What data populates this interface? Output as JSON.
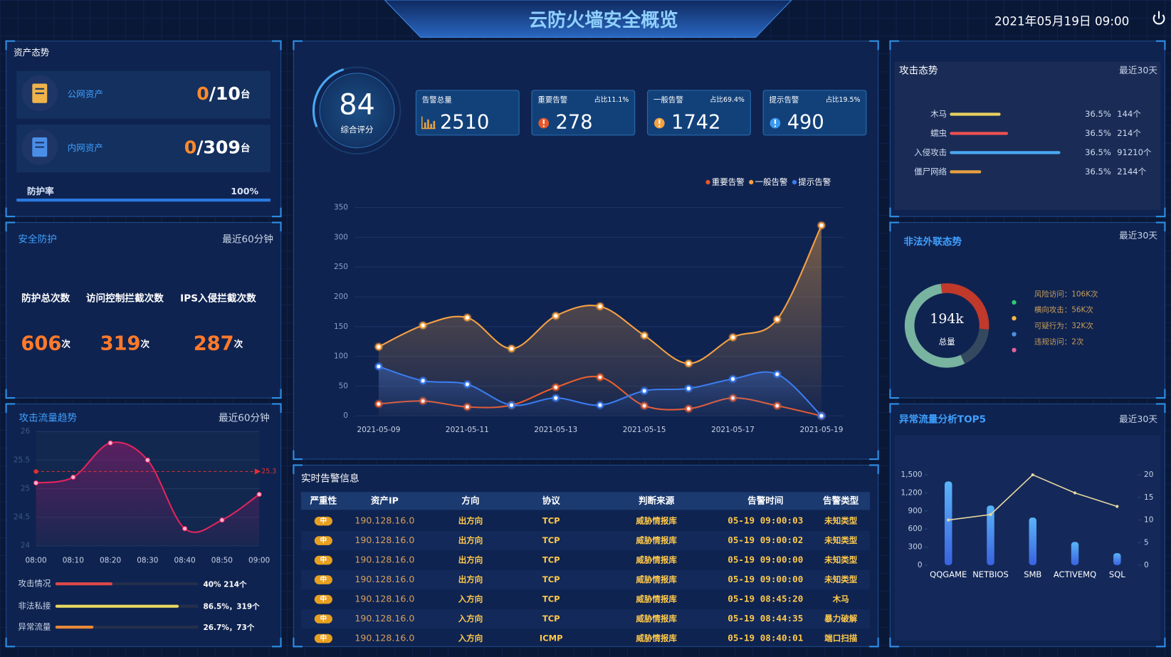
{
  "header": {
    "title": "云防火墙安全概览",
    "datetime": "2021年05月19日 09:00"
  },
  "assets": {
    "title": "资产态势",
    "items": [
      {
        "label": "公网资产",
        "value": "0",
        "total": "/10",
        "unit": "台"
      },
      {
        "label": "内网资产",
        "value": "0",
        "total": "/309",
        "unit": "台"
      }
    ],
    "rate_label": "防护率",
    "rate": 100,
    "rate_text": "100%"
  },
  "protection": {
    "title": "安全防护",
    "period": "最近60分钟",
    "stats": [
      {
        "label": "防护总次数",
        "value": 606,
        "unit": "次"
      },
      {
        "label": "访问控制拦截次数",
        "value": 319,
        "unit": "次"
      },
      {
        "label": "IPS入侵拦截次数",
        "value": 287,
        "unit": "次"
      }
    ]
  },
  "traffic_bars": [
    {
      "label": "攻击情况",
      "value": 40,
      "value_label": "40% 214个",
      "color": "#e04848"
    },
    {
      "label": "非法私接",
      "value": 86.5,
      "value_label": "86.5%，319个",
      "color": "#e8d860"
    },
    {
      "label": "异常流量",
      "value": 26.7,
      "value_label": "26.7%，73个",
      "color": "#e8883a"
    }
  ],
  "score": {
    "value": 84,
    "label": "综合评分"
  },
  "cards": [
    {
      "title": "告警总量",
      "value": 2510,
      "color": "#e8a040"
    },
    {
      "title": "重要告警",
      "ratio": "占比11.1%",
      "value": 278,
      "color": "#e8562a"
    },
    {
      "title": "一般告警",
      "ratio": "占比69.4%",
      "value": 1742,
      "color": "#f5a142"
    },
    {
      "title": "提示告警",
      "ratio": "占比19.5%",
      "value": 490,
      "color": "#3a9af0"
    }
  ],
  "alerts": {
    "title": "实时告警信息",
    "columns": [
      "严重性",
      "资产IP",
      "方向",
      "协议",
      "判断来源",
      "告警时间",
      "告警类型"
    ],
    "rows": [
      [
        "中",
        "190.128.16.0",
        "出方向",
        "TCP",
        "威胁情报库",
        "05-19 09:00:03",
        "未知类型"
      ],
      [
        "中",
        "190.128.16.0",
        "出方向",
        "TCP",
        "威胁情报库",
        "05-19 09:00:02",
        "未知类型"
      ],
      [
        "中",
        "190.128.16.0",
        "出方向",
        "TCP",
        "威胁情报库",
        "05-19 09:00:00",
        "未知类型"
      ],
      [
        "中",
        "190.128.16.0",
        "出方向",
        "TCP",
        "威胁情报库",
        "05-19 09:00:00",
        "未知类型"
      ],
      [
        "中",
        "190.128.16.0",
        "入方向",
        "TCP",
        "威胁情报库",
        "05-19 08:45:20",
        "木马"
      ],
      [
        "中",
        "190.128.16.0",
        "入方向",
        "TCP",
        "威胁情报库",
        "05-19 08:44:35",
        "暴力破解"
      ],
      [
        "中",
        "190.128.16.0",
        "入方向",
        "ICMP",
        "威胁情报库",
        "05-19 08:40:01",
        "端口扫描"
      ]
    ]
  },
  "attack": {
    "title": "攻击态势",
    "period": "最近30天",
    "rows": [
      {
        "label": "木马",
        "pct": "36.5%",
        "count": "144个"
      },
      {
        "label": "蠕虫",
        "pct": "36.5%",
        "count": "214个"
      },
      {
        "label": "入侵攻击",
        "pct": "36.5%",
        "count": "91210个"
      },
      {
        "label": "僵尸网络",
        "pct": "36.5%",
        "count": "2144个"
      }
    ]
  },
  "chart_data": [
    {
      "type": "line",
      "title": "攻击流量趋势",
      "period": "最近60分钟",
      "categories": [
        "08:00",
        "08:10",
        "08:20",
        "08:30",
        "08:40",
        "08:50",
        "09:00"
      ],
      "values": [
        25.1,
        25.2,
        25.8,
        25.5,
        24.3,
        24.45,
        24.9
      ],
      "color": "#e0245e",
      "threshold": 25.3,
      "threshold_color": "#e03030",
      "ylim": [
        24,
        26
      ],
      "yticks": [
        24,
        24.5,
        25,
        25.5,
        26
      ],
      "grid": true
    },
    {
      "type": "line",
      "categories": [
        "2021-05-09",
        null,
        "2021-05-11",
        null,
        "2021-05-13",
        null,
        "2021-05-15",
        null,
        "2021-05-17",
        null,
        "2021-05-19"
      ],
      "series": [
        {
          "name": "重要告警",
          "color": "#e8562a",
          "values": [
            20,
            25,
            15,
            18,
            48,
            65,
            17,
            12,
            30,
            17,
            0
          ]
        },
        {
          "name": "一般告警",
          "color": "#f5a142",
          "values": [
            116,
            152,
            165,
            113,
            168,
            184,
            135,
            88,
            132,
            162,
            320
          ]
        },
        {
          "name": "提示告警",
          "color": "#3a7cf0",
          "values": [
            83,
            59,
            53,
            18,
            30,
            18,
            42,
            46,
            62,
            70,
            0
          ]
        }
      ],
      "ylim": [
        0,
        350
      ],
      "yticks": [
        0,
        50,
        100,
        150,
        200,
        250,
        300,
        350
      ],
      "grid": true,
      "legend": "top-right"
    },
    {
      "type": "pie",
      "title": "非法外联态势",
      "period": "最近30天",
      "center": "194k",
      "center_label": "总量",
      "categories": [
        "风险访问：106K次",
        "横向攻击：56K次",
        "可疑行为：32K次",
        "违规访问：2次"
      ],
      "values": [
        106000,
        56000,
        32000,
        2
      ],
      "colors": [
        "#78b4a0",
        "#c0392b",
        "#34485f",
        "#d0705c"
      ],
      "legend_colors": [
        "#2ecc71",
        "#f5b942",
        "#4a90e2",
        "#e85f9a"
      ]
    },
    {
      "type": "bar",
      "title": "异常流量分析TOP5",
      "period": "最近30天",
      "categories": [
        "QQGAME",
        "NETBIOS",
        "SMB",
        "ACTIVEMQ",
        "SQL"
      ],
      "series": [
        {
          "color": "#4a9af0",
          "values": [
            1390,
            990,
            790,
            385,
            200
          ]
        },
        {
          "type": "line",
          "axis": "y2",
          "color": "#e8d8a0",
          "values": [
            10,
            11.2,
            20,
            16,
            13
          ]
        }
      ],
      "ylim": [
        0,
        1500
      ],
      "yticks": [
        0,
        300,
        600,
        900,
        {
          "value": 1200,
          "label": "1,200"
        },
        {
          "value": 1500,
          "label": "1,500"
        }
      ],
      "y2lim": [
        0,
        20
      ],
      "y2ticks": [
        0,
        5,
        10,
        15,
        20
      ]
    }
  ]
}
